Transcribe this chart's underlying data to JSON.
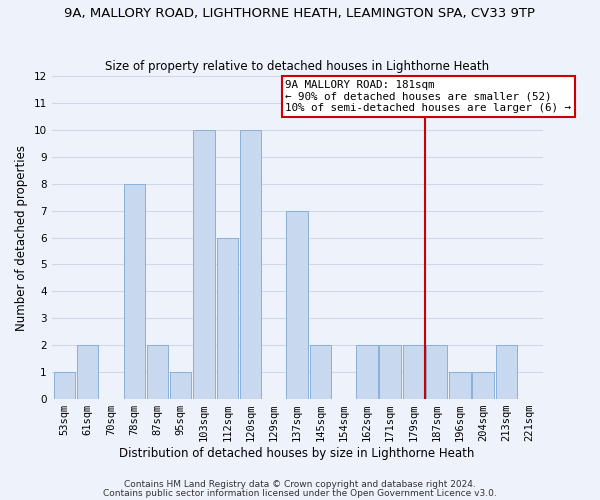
{
  "title": "9A, MALLORY ROAD, LIGHTHORNE HEATH, LEAMINGTON SPA, CV33 9TP",
  "subtitle": "Size of property relative to detached houses in Lighthorne Heath",
  "xlabel": "Distribution of detached houses by size in Lighthorne Heath",
  "ylabel": "Number of detached properties",
  "footer1": "Contains HM Land Registry data © Crown copyright and database right 2024.",
  "footer2": "Contains public sector information licensed under the Open Government Licence v3.0.",
  "bin_labels": [
    "53sqm",
    "61sqm",
    "70sqm",
    "78sqm",
    "87sqm",
    "95sqm",
    "103sqm",
    "112sqm",
    "120sqm",
    "129sqm",
    "137sqm",
    "145sqm",
    "154sqm",
    "162sqm",
    "171sqm",
    "179sqm",
    "187sqm",
    "196sqm",
    "204sqm",
    "213sqm",
    "221sqm"
  ],
  "bar_heights": [
    1,
    2,
    0,
    8,
    2,
    1,
    10,
    6,
    10,
    0,
    7,
    2,
    0,
    2,
    2,
    2,
    2,
    1,
    1,
    2,
    0
  ],
  "bar_color": "#c8d8ee",
  "bar_edge_color": "#8ab0d8",
  "grid_color": "#d0d8e8",
  "vline_color": "#cc0000",
  "annotation_line1": "9A MALLORY ROAD: 181sqm",
  "annotation_line2": "← 90% of detached houses are smaller (52)",
  "annotation_line3": "10% of semi-detached houses are larger (6) →",
  "annotation_box_color": "white",
  "annotation_box_edge": "#cc0000",
  "ylim": [
    0,
    12
  ],
  "yticks": [
    0,
    1,
    2,
    3,
    4,
    5,
    6,
    7,
    8,
    9,
    10,
    11,
    12
  ],
  "background_color": "#eef2fa",
  "title_fontsize": 9.5,
  "subtitle_fontsize": 8.5,
  "axis_label_fontsize": 8.5,
  "tick_fontsize": 7.5,
  "footer_fontsize": 6.5
}
